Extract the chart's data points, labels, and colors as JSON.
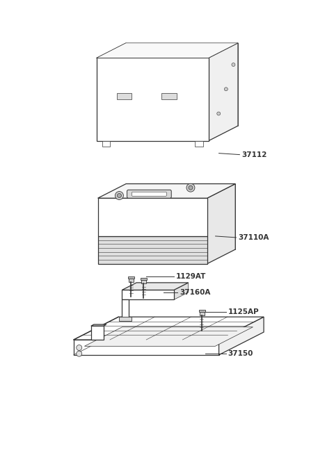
{
  "background_color": "#ffffff",
  "line_color": "#333333",
  "label_color": "#333333",
  "figsize": [
    4.8,
    6.55
  ],
  "dpi": 100,
  "lw_main": 0.9,
  "lw_thin": 0.5,
  "font_size": 7.5,
  "parts": [
    {
      "id": "37112",
      "label": "37112"
    },
    {
      "id": "37110A",
      "label": "37110A"
    },
    {
      "id": "1129AT",
      "label": "1129AT"
    },
    {
      "id": "37160A",
      "label": "37160A"
    },
    {
      "id": "1125AP",
      "label": "1125AP"
    },
    {
      "id": "37150",
      "label": "37150"
    }
  ]
}
